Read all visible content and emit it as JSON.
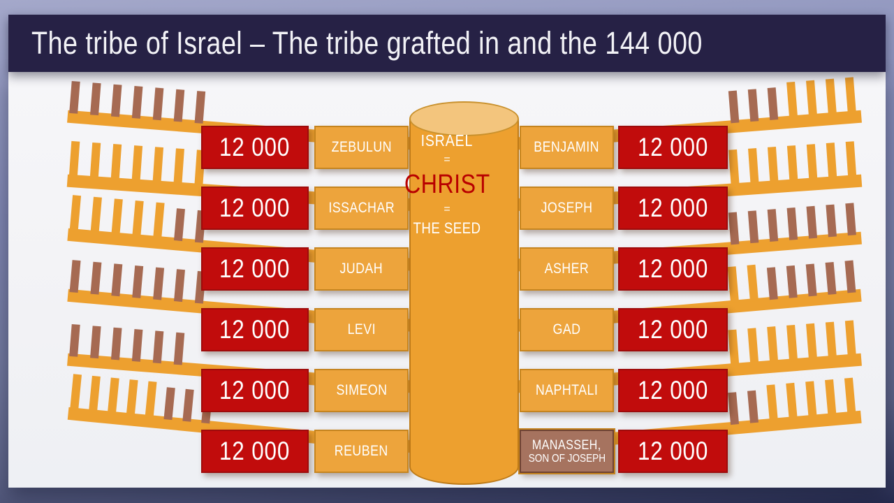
{
  "header": {
    "title": "The tribe of Israel – The tribe grafted in and the 144 000"
  },
  "trunk": {
    "line1": "ISRAEL",
    "eq1": "=",
    "line2": "CHRIST",
    "eq2": "=",
    "line3": "THE SEED"
  },
  "rows": {
    "left": [
      {
        "count": "12 000",
        "tribe": "ZEBULUN"
      },
      {
        "count": "12 000",
        "tribe": "ISSACHAR"
      },
      {
        "count": "12 000",
        "tribe": "JUDAH"
      },
      {
        "count": "12 000",
        "tribe": "LEVI"
      },
      {
        "count": "12 000",
        "tribe": "SIMEON"
      },
      {
        "count": "12 000",
        "tribe": "REUBEN"
      }
    ],
    "right": [
      {
        "count": "12 000",
        "tribe": "BENJAMIN"
      },
      {
        "count": "12 000",
        "tribe": "JOSEPH"
      },
      {
        "count": "12 000",
        "tribe": "ASHER"
      },
      {
        "count": "12 000",
        "tribe": "GAD"
      },
      {
        "count": "12 000",
        "tribe": "NAPHTALI"
      },
      {
        "count": "12 000",
        "tribe": "MANASSEH,",
        "tribe2": "SON OF JOSEPH"
      }
    ]
  },
  "branches": {
    "left": [
      {
        "angle": 4.5,
        "twigs": [
          "b",
          "b",
          "b",
          "b",
          "b",
          "b",
          "b"
        ]
      },
      {
        "angle": 4.0,
        "twigs": [
          "o",
          "o",
          "o",
          "o",
          "o",
          "o",
          "o"
        ]
      },
      {
        "angle": 5.0,
        "twigs": [
          "o",
          "o",
          "o",
          "o",
          "o",
          "b",
          "b"
        ]
      },
      {
        "angle": 5.0,
        "twigs": [
          "b",
          "b",
          "b",
          "b",
          "b",
          "b",
          "b"
        ]
      },
      {
        "angle": 4.5,
        "twigs": [
          "b",
          "b",
          "b",
          "b",
          "b",
          "b"
        ]
      },
      {
        "angle": 5.5,
        "twigs": [
          "o",
          "o",
          "o",
          "o",
          "o",
          "b",
          "b",
          "b"
        ]
      }
    ],
    "right": [
      {
        "angle": -4.5,
        "twigs": [
          "b",
          "b",
          "b",
          "o",
          "o",
          "o",
          "o"
        ]
      },
      {
        "angle": -4.0,
        "twigs": [
          "o",
          "o",
          "o",
          "o",
          "o",
          "o",
          "o"
        ]
      },
      {
        "angle": -4.5,
        "twigs": [
          "b",
          "b",
          "b",
          "b",
          "b",
          "b",
          "b"
        ]
      },
      {
        "angle": -5.0,
        "twigs": [
          "o",
          "o",
          "b",
          "b",
          "b",
          "b",
          "b"
        ]
      },
      {
        "angle": -4.5,
        "twigs": [
          "o",
          "o",
          "o",
          "o",
          "o",
          "o",
          "o"
        ]
      },
      {
        "angle": -5.0,
        "twigs": [
          "b",
          "b",
          "o",
          "o",
          "o",
          "o",
          "o"
        ]
      }
    ]
  },
  "colors": {
    "orange": "#EDA02F",
    "boxOrange": "#EDA43C",
    "brown": "#A66A52",
    "red": "#C10C0C",
    "redBorder": "#9E0B0B",
    "navy": "#262145",
    "christ": "#B80000",
    "manasseh": "#A6735F",
    "manBorder": "#6E4233",
    "goldBorder": "#C5841F"
  }
}
